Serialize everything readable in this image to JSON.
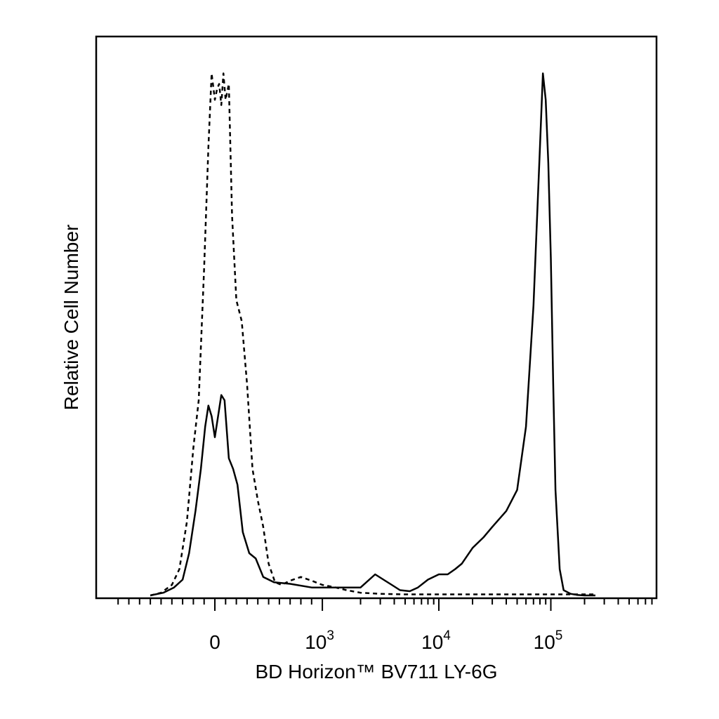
{
  "chart_data": {
    "type": "line",
    "title": "",
    "xlabel": "BD Horizon™ BV711 LY-6G",
    "ylabel": "Relative Cell Number",
    "x_scale": "biexponential",
    "xlim": [
      -600,
      250000
    ],
    "ylim": [
      0,
      100
    ],
    "grid": false,
    "legend": "none",
    "x_ticks": [
      {
        "value": 0,
        "base": "0",
        "exp": ""
      },
      {
        "value": 1000,
        "base": "10",
        "exp": "3"
      },
      {
        "value": 10000,
        "base": "10",
        "exp": "4"
      },
      {
        "value": 100000,
        "base": "10",
        "exp": "5"
      }
    ],
    "series": [
      {
        "style": "dashed",
        "x": [
          -600,
          -500,
          -400,
          -330,
          -260,
          -200,
          -150,
          -100,
          -60,
          -30,
          0,
          20,
          40,
          60,
          80,
          100,
          130,
          160,
          200,
          250,
          300,
          350,
          400,
          450,
          500,
          560,
          620,
          700,
          800,
          900,
          1000,
          1200,
          1500,
          2000,
          3000,
          5000,
          10000,
          30000,
          100000,
          250000
        ],
        "y": [
          0,
          0.5,
          2,
          5,
          14,
          28,
          37,
          62,
          85,
          99,
          94,
          96,
          97,
          93,
          99,
          94,
          97,
          72,
          56,
          52,
          40,
          24,
          18,
          13,
          6,
          2.5,
          2,
          2.8,
          3.5,
          2.8,
          2,
          1.5,
          1,
          0.5,
          0.3,
          0.2,
          0.2,
          0.2,
          0.2,
          0.2
        ]
      },
      {
        "style": "solid",
        "x": [
          -600,
          -480,
          -380,
          -300,
          -240,
          -180,
          -130,
          -90,
          -60,
          -30,
          0,
          30,
          60,
          90,
          130,
          170,
          210,
          260,
          320,
          380,
          450,
          550,
          700,
          900,
          1300,
          2000,
          2700,
          3200,
          3800,
          4500,
          5500,
          6500,
          8000,
          10000,
          12000,
          14000,
          16000,
          20000,
          25000,
          30000,
          40000,
          50000,
          60000,
          70000,
          80000,
          85000,
          90000,
          95000,
          100000,
          105000,
          110000,
          120000,
          130000,
          150000,
          170000,
          200000,
          250000
        ],
        "y": [
          0,
          0.5,
          1.5,
          3,
          8,
          16,
          24,
          32,
          36,
          34,
          30,
          34,
          38,
          37,
          26,
          24,
          21,
          12,
          8,
          7,
          3.5,
          2.5,
          2.2,
          1.5,
          1.5,
          1.5,
          4,
          3,
          2,
          1,
          0.8,
          1.5,
          3,
          4,
          4,
          5,
          6,
          9,
          11,
          13,
          16,
          20,
          32,
          55,
          85,
          99,
          94,
          82,
          64,
          40,
          20,
          5,
          1,
          0.3,
          0.1,
          0,
          0
        ]
      }
    ]
  }
}
